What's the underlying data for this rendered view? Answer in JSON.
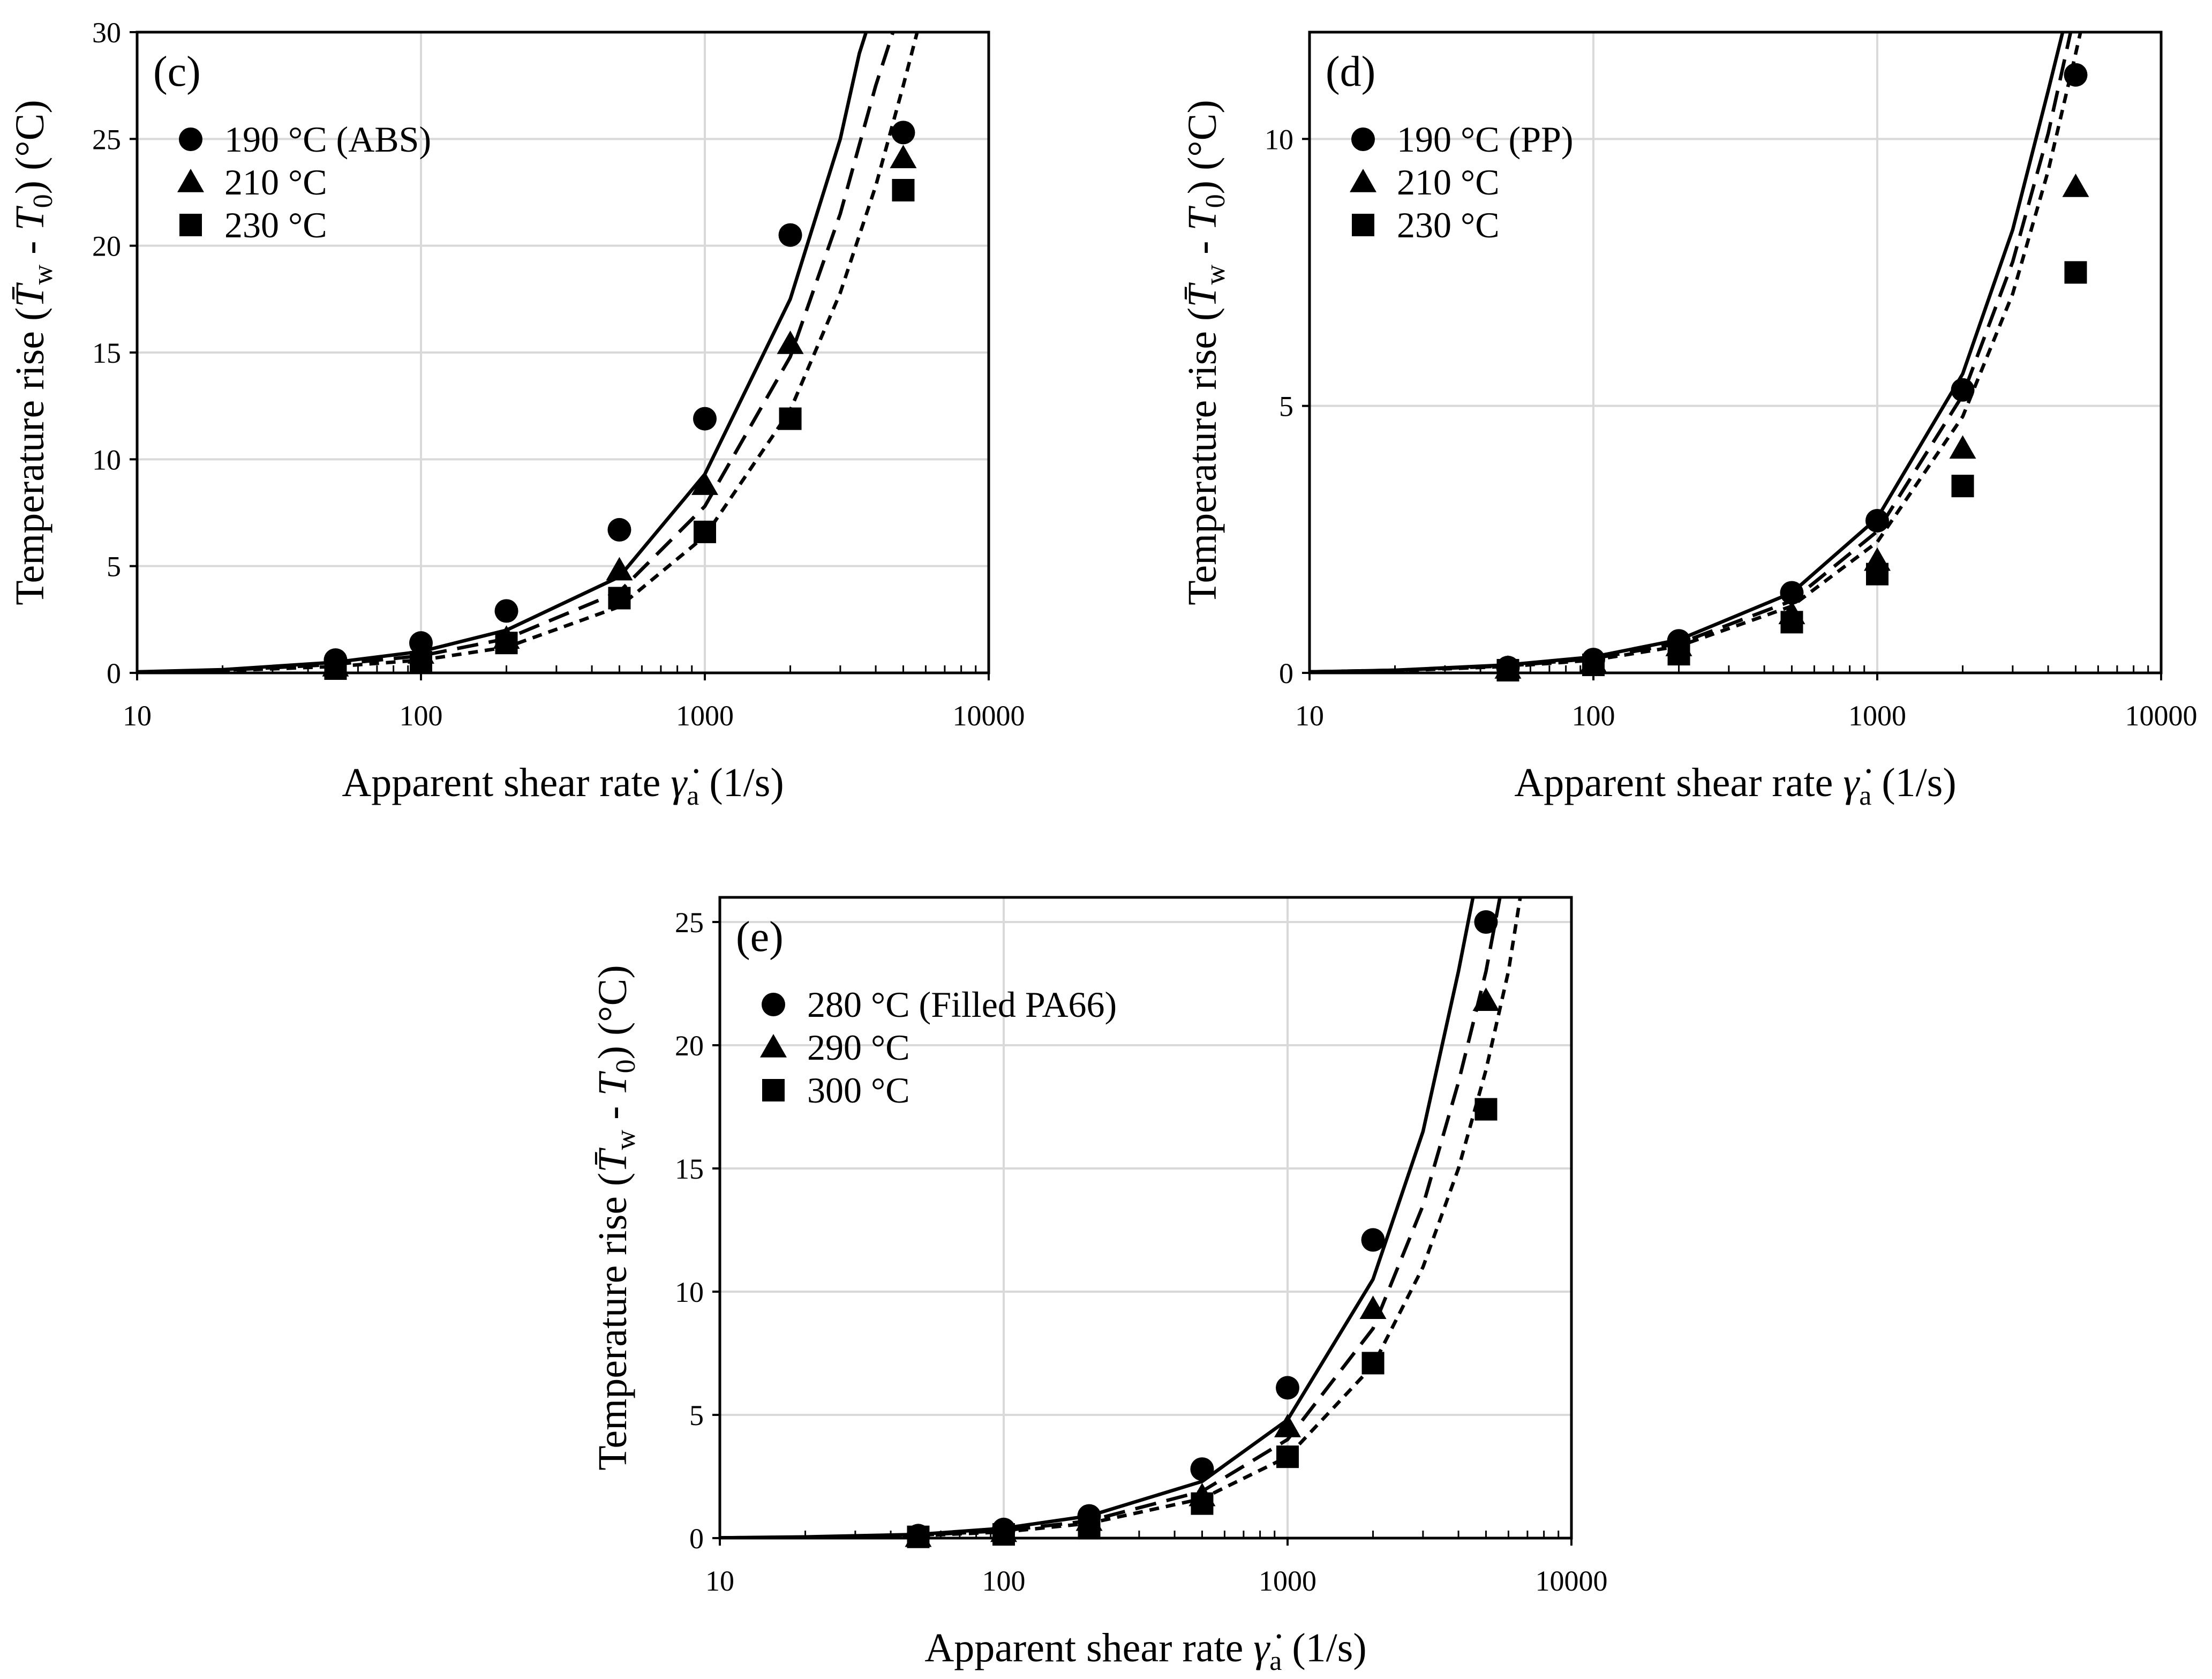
{
  "figure": {
    "label": "Temperature rise versus apparent shear rate for ABS, PP and filled PA66"
  },
  "chart_data": [
    {
      "type": "scatter",
      "panel": "(c)",
      "xscale": "log",
      "xlim": [
        10,
        10000
      ],
      "ylim": [
        0,
        30
      ],
      "xticks": [
        10,
        100,
        1000,
        10000
      ],
      "xtick_labels": [
        "10",
        "100",
        "1000",
        "10000"
      ],
      "yticks": [
        0,
        5,
        10,
        15,
        20,
        25,
        30
      ],
      "ytick_labels": [
        "0",
        "5",
        "10",
        "15",
        "20",
        "25",
        "30"
      ],
      "xlabel": {
        "main": "Apparent shear rate ",
        "symbol": "γ̇",
        "sub": "a",
        "tail": " (1/s)"
      },
      "ylabel": {
        "main": "Temperature rise (",
        "var1": "T̄",
        "sub1": "w",
        "mid": " - ",
        "var2": "T",
        "sub2": "0",
        "tail": ") (°C)"
      },
      "grid": true,
      "legend_position": "top-left",
      "series": [
        {
          "name": "190 °C (ABS)",
          "marker": "circle",
          "line": "solid",
          "points": [
            [
              50,
              0.6
            ],
            [
              100,
              1.4
            ],
            [
              200,
              2.9
            ],
            [
              500,
              6.7
            ],
            [
              1000,
              11.9
            ],
            [
              2000,
              20.5
            ],
            [
              5000,
              25.3
            ]
          ],
          "model": [
            [
              10,
              0.05
            ],
            [
              20,
              0.15
            ],
            [
              50,
              0.5
            ],
            [
              100,
              1.0
            ],
            [
              200,
              2.0
            ],
            [
              500,
              4.5
            ],
            [
              1000,
              9.3
            ],
            [
              2000,
              17.5
            ],
            [
              3000,
              25.0
            ],
            [
              3500,
              29.0
            ],
            [
              3700,
              30.0
            ]
          ]
        },
        {
          "name": "210 °C",
          "marker": "triangle",
          "line": "long-dash",
          "points": [
            [
              50,
              0.3
            ],
            [
              100,
              0.9
            ],
            [
              200,
              1.6
            ],
            [
              500,
              4.8
            ],
            [
              1000,
              8.8
            ],
            [
              2000,
              15.4
            ],
            [
              5000,
              24.1
            ]
          ],
          "model": [
            [
              10,
              0.04
            ],
            [
              20,
              0.12
            ],
            [
              50,
              0.4
            ],
            [
              100,
              0.8
            ],
            [
              200,
              1.6
            ],
            [
              500,
              3.8
            ],
            [
              1000,
              7.8
            ],
            [
              2000,
              14.8
            ],
            [
              3000,
              21.5
            ],
            [
              4000,
              27.5
            ],
            [
              4600,
              30.0
            ]
          ]
        },
        {
          "name": "230 °C",
          "marker": "square",
          "line": "short-dash",
          "points": [
            [
              50,
              0.2
            ],
            [
              100,
              0.5
            ],
            [
              200,
              1.4
            ],
            [
              500,
              3.5
            ],
            [
              1000,
              6.6
            ],
            [
              2000,
              11.9
            ],
            [
              5000,
              22.6
            ]
          ],
          "model": [
            [
              10,
              0.03
            ],
            [
              20,
              0.1
            ],
            [
              50,
              0.3
            ],
            [
              100,
              0.6
            ],
            [
              200,
              1.2
            ],
            [
              500,
              3.1
            ],
            [
              1000,
              6.4
            ],
            [
              2000,
              12.3
            ],
            [
              3000,
              17.8
            ],
            [
              4000,
              22.8
            ],
            [
              5000,
              27.5
            ],
            [
              5600,
              30.0
            ]
          ]
        }
      ]
    },
    {
      "type": "scatter",
      "panel": "(d)",
      "xscale": "log",
      "xlim": [
        10,
        10000
      ],
      "ylim": [
        0,
        12
      ],
      "xticks": [
        10,
        100,
        1000,
        10000
      ],
      "xtick_labels": [
        "10",
        "100",
        "1000",
        "10000"
      ],
      "yticks": [
        0,
        5,
        10
      ],
      "ytick_labels": [
        "0",
        "5",
        "10"
      ],
      "xlabel": {
        "main": "Apparent shear rate ",
        "symbol": "γ̇",
        "sub": "a",
        "tail": " (1/s)"
      },
      "ylabel": {
        "main": "Temperature rise (",
        "var1": "T̄",
        "sub1": "w",
        "mid": " - ",
        "var2": "T",
        "sub2": "0",
        "tail": ") (°C)"
      },
      "grid": true,
      "legend_position": "top-left",
      "series": [
        {
          "name": "190 °C (PP)",
          "marker": "circle",
          "line": "solid",
          "points": [
            [
              50,
              0.1
            ],
            [
              100,
              0.25
            ],
            [
              200,
              0.6
            ],
            [
              500,
              1.5
            ],
            [
              1000,
              2.85
            ],
            [
              2000,
              5.3
            ],
            [
              5000,
              11.2
            ]
          ],
          "model": [
            [
              10,
              0.02
            ],
            [
              20,
              0.05
            ],
            [
              50,
              0.15
            ],
            [
              100,
              0.3
            ],
            [
              200,
              0.62
            ],
            [
              500,
              1.5
            ],
            [
              1000,
              2.9
            ],
            [
              2000,
              5.6
            ],
            [
              3000,
              8.3
            ],
            [
              4000,
              10.9
            ],
            [
              4500,
              12.0
            ]
          ]
        },
        {
          "name": "210 °C",
          "marker": "triangle",
          "line": "long-dash",
          "points": [
            [
              50,
              0.08
            ],
            [
              100,
              0.2
            ],
            [
              200,
              0.5
            ],
            [
              500,
              1.1
            ],
            [
              1000,
              2.1
            ],
            [
              2000,
              4.2
            ],
            [
              5000,
              9.1
            ]
          ],
          "model": [
            [
              10,
              0.02
            ],
            [
              20,
              0.05
            ],
            [
              50,
              0.13
            ],
            [
              100,
              0.27
            ],
            [
              200,
              0.55
            ],
            [
              500,
              1.35
            ],
            [
              1000,
              2.65
            ],
            [
              2000,
              5.2
            ],
            [
              3000,
              7.7
            ],
            [
              4000,
              10.1
            ],
            [
              4800,
              12.0
            ]
          ]
        },
        {
          "name": "230 °C",
          "marker": "square",
          "line": "short-dash",
          "points": [
            [
              50,
              0.05
            ],
            [
              100,
              0.15
            ],
            [
              200,
              0.35
            ],
            [
              500,
              0.95
            ],
            [
              1000,
              1.85
            ],
            [
              2000,
              3.5
            ],
            [
              5000,
              7.5
            ]
          ],
          "model": [
            [
              10,
              0.02
            ],
            [
              20,
              0.04
            ],
            [
              50,
              0.12
            ],
            [
              100,
              0.24
            ],
            [
              200,
              0.5
            ],
            [
              500,
              1.25
            ],
            [
              1000,
              2.45
            ],
            [
              2000,
              4.8
            ],
            [
              3000,
              7.1
            ],
            [
              4000,
              9.4
            ],
            [
              5000,
              11.6
            ],
            [
              5200,
              12.0
            ]
          ]
        }
      ]
    },
    {
      "type": "scatter",
      "panel": "(e)",
      "xscale": "log",
      "xlim": [
        10,
        10000
      ],
      "ylim": [
        0,
        26
      ],
      "xticks": [
        10,
        100,
        1000,
        10000
      ],
      "xtick_labels": [
        "10",
        "100",
        "1000",
        "10000"
      ],
      "yticks": [
        0,
        5,
        10,
        15,
        20,
        25
      ],
      "ytick_labels": [
        "0",
        "5",
        "10",
        "15",
        "20",
        "25"
      ],
      "xlabel": {
        "main": "Apparent shear rate ",
        "symbol": "γ̇",
        "sub": "a",
        "tail": " (1/s)"
      },
      "ylabel": {
        "main": "Temperature rise (",
        "var1": "T̄",
        "sub1": "w",
        "mid": " - ",
        "var2": "T",
        "sub2": "0",
        "tail": ") (°C)"
      },
      "grid": true,
      "legend_position": "top-left",
      "series": [
        {
          "name": "280 °C (Filled PA66)",
          "marker": "circle",
          "line": "solid",
          "points": [
            [
              50,
              0.1
            ],
            [
              100,
              0.35
            ],
            [
              200,
              0.9
            ],
            [
              500,
              2.8
            ],
            [
              1000,
              6.1
            ],
            [
              2000,
              12.1
            ],
            [
              5000,
              25.0
            ]
          ],
          "model": [
            [
              10,
              0.01
            ],
            [
              20,
              0.05
            ],
            [
              50,
              0.15
            ],
            [
              100,
              0.4
            ],
            [
              200,
              0.9
            ],
            [
              500,
              2.3
            ],
            [
              1000,
              4.8
            ],
            [
              2000,
              10.5
            ],
            [
              3000,
              16.5
            ],
            [
              4000,
              23.0
            ],
            [
              4500,
              26.0
            ]
          ]
        },
        {
          "name": "290 °C",
          "marker": "triangle",
          "line": "long-dash",
          "points": [
            [
              50,
              0.05
            ],
            [
              100,
              0.25
            ],
            [
              200,
              0.7
            ],
            [
              500,
              1.7
            ],
            [
              1000,
              4.5
            ],
            [
              2000,
              9.3
            ],
            [
              5000,
              21.8
            ]
          ],
          "model": [
            [
              10,
              0.01
            ],
            [
              20,
              0.04
            ],
            [
              50,
              0.12
            ],
            [
              100,
              0.3
            ],
            [
              200,
              0.7
            ],
            [
              500,
              1.9
            ],
            [
              1000,
              4.0
            ],
            [
              2000,
              8.5
            ],
            [
              3000,
              13.5
            ],
            [
              4000,
              18.5
            ],
            [
              5000,
              23.0
            ],
            [
              5600,
              26.0
            ]
          ]
        },
        {
          "name": "300 °C",
          "marker": "square",
          "line": "short-dash",
          "points": [
            [
              50,
              0.05
            ],
            [
              100,
              0.15
            ],
            [
              200,
              0.4
            ],
            [
              500,
              1.4
            ],
            [
              1000,
              3.3
            ],
            [
              2000,
              7.1
            ],
            [
              5000,
              17.4
            ]
          ],
          "model": [
            [
              10,
              0.01
            ],
            [
              20,
              0.03
            ],
            [
              50,
              0.1
            ],
            [
              100,
              0.25
            ],
            [
              200,
              0.6
            ],
            [
              500,
              1.6
            ],
            [
              1000,
              3.3
            ],
            [
              2000,
              7.0
            ],
            [
              3000,
              11.0
            ],
            [
              4000,
              15.0
            ],
            [
              5000,
              19.0
            ],
            [
              6000,
              23.0
            ],
            [
              6600,
              26.0
            ]
          ]
        }
      ]
    }
  ]
}
